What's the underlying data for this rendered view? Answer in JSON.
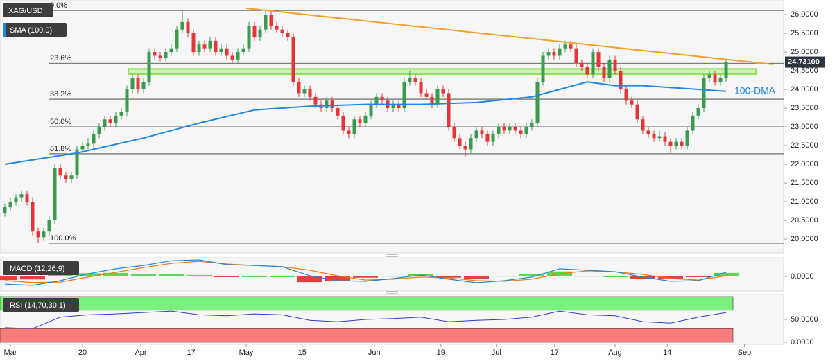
{
  "chart_data": [
    {
      "type": "candlestick",
      "symbol": "XAG/USD",
      "indicator_label": "SMA (100,0)",
      "up_color": "#3a9b4e",
      "down_color": "#e4353a",
      "xlim": [
        -0.875,
        140.375
      ],
      "xticks": [
        {
          "value": 1,
          "label": "Mar"
        },
        {
          "value": 14,
          "label": "20"
        },
        {
          "value": 24.5,
          "label": "Apr"
        },
        {
          "value": 33.6,
          "label": "17"
        },
        {
          "value": 43.5,
          "label": "May"
        },
        {
          "value": 53.6,
          "label": "15"
        },
        {
          "value": 66.6,
          "label": "Jun"
        },
        {
          "value": 78.6,
          "label": "19"
        },
        {
          "value": 88.6,
          "label": "Jul"
        },
        {
          "value": 99.1,
          "label": "17"
        },
        {
          "value": 110,
          "label": "Aug"
        },
        {
          "value": 119.4,
          "label": "14"
        },
        {
          "value": 133.3,
          "label": "Sep"
        }
      ],
      "ylim": [
        19.63,
        26.39
      ],
      "yticks": [
        {
          "value": 20,
          "label": "20.0000"
        },
        {
          "value": 20.5,
          "label": "20.5000"
        },
        {
          "value": 21,
          "label": "21.0000"
        },
        {
          "value": 21.5,
          "label": "21.5000"
        },
        {
          "value": 22,
          "label": "22.0000"
        },
        {
          "value": 22.5,
          "label": "22.5000"
        },
        {
          "value": 23,
          "label": "23.0000"
        },
        {
          "value": 23.5,
          "label": "23.5000"
        },
        {
          "value": 24,
          "label": "24.0000"
        },
        {
          "value": 24.5,
          "label": "24.5000"
        },
        {
          "value": 25,
          "label": "25.0000"
        },
        {
          "value": 25.5,
          "label": "25.5000"
        },
        {
          "value": 26,
          "label": "26.0000"
        }
      ],
      "last_price": {
        "value": 24.731,
        "label": "24.73100"
      },
      "fib_levels": [
        {
          "value": 26.11,
          "label": "0.0%"
        },
        {
          "value": 24.7,
          "label": "23.6%"
        },
        {
          "value": 23.74,
          "label": "38.2%"
        },
        {
          "value": 23.0,
          "label": "50.0%"
        },
        {
          "value": 22.28,
          "label": "61.8%"
        },
        {
          "value": 19.89,
          "label": "100.0%"
        }
      ],
      "zone": {
        "x": [
          22.25,
          135.4
        ],
        "from": 24.41,
        "to": 24.55,
        "color": "#8be04e"
      },
      "trendline": {
        "color": "#f5a025",
        "x": [
          43.5,
          138.5
        ],
        "values": [
          26.17,
          24.67
        ]
      },
      "sma": {
        "name": "100-DMA",
        "color": "#1e88e5",
        "x": [
          0,
          13,
          25,
          35,
          45,
          55,
          65,
          75,
          85,
          95,
          100,
          105,
          110,
          115,
          125,
          130
        ],
        "values": [
          22.0,
          22.3,
          22.7,
          23.1,
          23.45,
          23.55,
          23.6,
          23.6,
          23.65,
          23.8,
          24.0,
          24.2,
          24.1,
          24.1,
          24.0,
          23.95
        ]
      },
      "candles": [
        [
          20.7,
          20.95,
          20.6,
          20.85
        ],
        [
          20.85,
          21.1,
          20.75,
          21.0
        ],
        [
          21.0,
          21.2,
          20.9,
          21.1
        ],
        [
          21.1,
          21.3,
          21.0,
          21.2
        ],
        [
          21.2,
          21.3,
          20.9,
          21.0
        ],
        [
          21.0,
          21.1,
          20.1,
          20.2
        ],
        [
          20.2,
          20.3,
          19.9,
          20.05
        ],
        [
          20.05,
          20.3,
          19.95,
          20.2
        ],
        [
          20.2,
          20.6,
          20.1,
          20.5
        ],
        [
          20.5,
          22.0,
          20.4,
          21.9
        ],
        [
          21.9,
          22.0,
          21.6,
          21.7
        ],
        [
          21.7,
          21.8,
          21.5,
          21.6
        ],
        [
          21.6,
          21.8,
          21.5,
          21.7
        ],
        [
          21.7,
          22.5,
          21.6,
          22.4
        ],
        [
          22.4,
          22.6,
          22.3,
          22.5
        ],
        [
          22.5,
          22.7,
          22.4,
          22.55
        ],
        [
          22.55,
          22.9,
          22.45,
          22.8
        ],
        [
          22.8,
          23.1,
          22.7,
          23.0
        ],
        [
          23.0,
          23.3,
          22.9,
          23.2
        ],
        [
          23.2,
          23.3,
          23.0,
          23.1
        ],
        [
          23.1,
          23.4,
          23.0,
          23.3
        ],
        [
          23.3,
          23.5,
          23.2,
          23.4
        ],
        [
          23.4,
          24.1,
          23.3,
          24.0
        ],
        [
          24.0,
          24.4,
          23.9,
          24.3
        ],
        [
          24.3,
          24.4,
          23.9,
          24.0
        ],
        [
          24.0,
          24.3,
          23.9,
          24.2
        ],
        [
          24.2,
          25.1,
          24.1,
          25.0
        ],
        [
          25.0,
          25.1,
          24.8,
          24.9
        ],
        [
          24.9,
          25.0,
          24.75,
          24.85
        ],
        [
          24.85,
          25.1,
          24.75,
          25.0
        ],
        [
          25.0,
          25.2,
          24.9,
          25.1
        ],
        [
          25.1,
          25.7,
          25.0,
          25.6
        ],
        [
          25.6,
          26.1,
          25.5,
          25.8
        ],
        [
          25.8,
          25.9,
          25.4,
          25.5
        ],
        [
          25.5,
          25.6,
          24.9,
          25.0
        ],
        [
          25.0,
          25.3,
          24.9,
          25.2
        ],
        [
          25.2,
          25.3,
          25.0,
          25.1
        ],
        [
          25.1,
          25.4,
          25.0,
          25.3
        ],
        [
          25.3,
          25.4,
          24.9,
          25.0
        ],
        [
          25.0,
          25.2,
          24.9,
          25.1
        ],
        [
          25.1,
          25.2,
          24.8,
          24.9
        ],
        [
          24.9,
          25.0,
          24.7,
          24.8
        ],
        [
          24.8,
          25.1,
          24.7,
          25.0
        ],
        [
          25.0,
          25.2,
          24.9,
          25.1
        ],
        [
          25.1,
          25.8,
          25.0,
          25.7
        ],
        [
          25.7,
          25.8,
          25.3,
          25.4
        ],
        [
          25.4,
          25.7,
          25.3,
          25.6
        ],
        [
          25.6,
          26.1,
          25.5,
          26.0
        ],
        [
          26.0,
          26.1,
          25.6,
          25.7
        ],
        [
          25.7,
          25.8,
          25.5,
          25.6
        ],
        [
          25.6,
          25.7,
          25.4,
          25.5
        ],
        [
          25.5,
          25.6,
          25.3,
          25.4
        ],
        [
          25.4,
          25.5,
          24.1,
          24.2
        ],
        [
          24.2,
          24.3,
          23.8,
          23.9
        ],
        [
          23.9,
          24.1,
          23.8,
          24.0
        ],
        [
          24.0,
          24.1,
          23.7,
          23.8
        ],
        [
          23.8,
          23.9,
          23.5,
          23.6
        ],
        [
          23.6,
          23.7,
          23.4,
          23.5
        ],
        [
          23.5,
          23.8,
          23.4,
          23.7
        ],
        [
          23.7,
          23.8,
          23.4,
          23.5
        ],
        [
          23.5,
          23.6,
          23.2,
          23.3
        ],
        [
          23.3,
          23.4,
          22.8,
          22.9
        ],
        [
          22.9,
          23.0,
          22.7,
          22.8
        ],
        [
          22.8,
          23.3,
          22.7,
          23.2
        ],
        [
          23.2,
          23.3,
          23.0,
          23.1
        ],
        [
          23.1,
          23.4,
          23.0,
          23.3
        ],
        [
          23.3,
          23.7,
          23.2,
          23.6
        ],
        [
          23.6,
          23.9,
          23.5,
          23.8
        ],
        [
          23.8,
          23.9,
          23.6,
          23.7
        ],
        [
          23.7,
          23.8,
          23.4,
          23.5
        ],
        [
          23.5,
          23.7,
          23.4,
          23.6
        ],
        [
          23.6,
          23.7,
          23.4,
          23.5
        ],
        [
          23.5,
          24.3,
          23.4,
          24.2
        ],
        [
          24.2,
          24.5,
          24.1,
          24.3
        ],
        [
          24.3,
          24.4,
          24.1,
          24.2
        ],
        [
          24.2,
          24.3,
          23.8,
          23.9
        ],
        [
          23.9,
          24.0,
          23.7,
          23.8
        ],
        [
          23.8,
          23.9,
          23.5,
          23.6
        ],
        [
          23.6,
          24.1,
          23.5,
          24.0
        ],
        [
          24.0,
          24.1,
          23.8,
          23.9
        ],
        [
          23.9,
          24.0,
          22.9,
          23.0
        ],
        [
          23.0,
          23.1,
          22.6,
          22.7
        ],
        [
          22.7,
          22.8,
          22.4,
          22.5
        ],
        [
          22.5,
          22.6,
          22.2,
          22.4
        ],
        [
          22.4,
          22.8,
          22.3,
          22.7
        ],
        [
          22.7,
          23.0,
          22.6,
          22.9
        ],
        [
          22.9,
          23.0,
          22.7,
          22.8
        ],
        [
          22.8,
          22.9,
          22.5,
          22.6
        ],
        [
          22.6,
          22.9,
          22.5,
          22.8
        ],
        [
          22.8,
          23.1,
          22.7,
          23.0
        ],
        [
          23.0,
          23.1,
          22.8,
          22.9
        ],
        [
          22.9,
          23.1,
          22.8,
          23.0
        ],
        [
          23.0,
          23.1,
          22.8,
          22.9
        ],
        [
          22.9,
          23.0,
          22.7,
          22.8
        ],
        [
          22.8,
          23.1,
          22.7,
          23.0
        ],
        [
          23.0,
          23.2,
          22.9,
          23.1
        ],
        [
          23.1,
          24.3,
          23.0,
          24.2
        ],
        [
          24.2,
          25.0,
          24.1,
          24.9
        ],
        [
          24.9,
          25.1,
          24.8,
          25.0
        ],
        [
          25.0,
          25.1,
          24.8,
          24.9
        ],
        [
          24.9,
          25.2,
          24.8,
          25.1
        ],
        [
          25.1,
          25.3,
          25.0,
          25.2
        ],
        [
          25.2,
          25.3,
          25.0,
          25.1
        ],
        [
          25.1,
          25.2,
          24.6,
          24.7
        ],
        [
          24.7,
          24.8,
          24.5,
          24.6
        ],
        [
          24.6,
          24.7,
          24.3,
          24.4
        ],
        [
          24.4,
          25.1,
          24.3,
          25.0
        ],
        [
          25.0,
          25.1,
          24.5,
          24.6
        ],
        [
          24.6,
          24.7,
          24.2,
          24.3
        ],
        [
          24.3,
          24.9,
          24.2,
          24.8
        ],
        [
          24.8,
          24.9,
          24.4,
          24.5
        ],
        [
          24.5,
          24.6,
          23.9,
          24.0
        ],
        [
          24.0,
          24.1,
          23.6,
          23.7
        ],
        [
          23.7,
          23.8,
          23.5,
          23.6
        ],
        [
          23.6,
          23.7,
          23.1,
          23.2
        ],
        [
          23.2,
          23.3,
          22.8,
          22.9
        ],
        [
          22.9,
          23.0,
          22.7,
          22.8
        ],
        [
          22.8,
          22.9,
          22.6,
          22.7
        ],
        [
          22.7,
          22.9,
          22.6,
          22.75
        ],
        [
          22.75,
          22.85,
          22.5,
          22.6
        ],
        [
          22.6,
          22.7,
          22.3,
          22.5
        ],
        [
          22.5,
          22.7,
          22.4,
          22.6
        ],
        [
          22.6,
          22.7,
          22.4,
          22.5
        ],
        [
          22.5,
          23.0,
          22.4,
          22.9
        ],
        [
          22.9,
          23.4,
          22.8,
          23.3
        ],
        [
          23.3,
          23.6,
          23.2,
          23.5
        ],
        [
          23.5,
          24.4,
          23.4,
          24.3
        ],
        [
          24.3,
          24.5,
          24.2,
          24.4
        ],
        [
          24.4,
          24.5,
          24.1,
          24.2
        ],
        [
          24.2,
          24.4,
          24.1,
          24.3
        ],
        [
          24.3,
          24.8,
          24.2,
          24.731
        ]
      ]
    },
    {
      "type": "macd",
      "label": "MACD (12,26,9)",
      "ylim": [
        -0.49,
        0.63
      ],
      "yticks": [
        {
          "value": 0,
          "label": "0.0000"
        }
      ],
      "x": [
        0,
        5,
        10,
        15,
        20,
        25,
        30,
        35,
        40,
        45,
        50,
        55,
        60,
        65,
        70,
        75,
        80,
        85,
        90,
        95,
        100,
        105,
        110,
        115,
        120,
        125,
        130
      ],
      "macd": {
        "color": "#1e88e5",
        "values": [
          -0.26,
          -0.3,
          -0.14,
          0.09,
          0.26,
          0.37,
          0.53,
          0.56,
          0.4,
          0.37,
          0.33,
          0.02,
          -0.14,
          -0.16,
          -0.07,
          0.05,
          -0.09,
          -0.21,
          -0.14,
          -0.02,
          0.26,
          0.21,
          0.16,
          -0.02,
          -0.16,
          -0.14,
          0.14
        ]
      },
      "signal": {
        "color": "#f57c00",
        "values": [
          -0.14,
          -0.2,
          -0.19,
          -0.02,
          0.14,
          0.3,
          0.44,
          0.51,
          0.42,
          0.37,
          0.33,
          0.21,
          0.02,
          -0.12,
          -0.09,
          -0.02,
          -0.05,
          -0.14,
          -0.16,
          -0.09,
          0.09,
          0.19,
          0.16,
          0.07,
          -0.07,
          -0.12,
          0.02
        ]
      },
      "histogram": {
        "up_color": "#3ed13a",
        "down_color": "#e02020",
        "values": [
          -0.12,
          -0.1,
          0.05,
          0.11,
          0.12,
          0.07,
          0.09,
          0.05,
          -0.02,
          0,
          0,
          -0.19,
          -0.16,
          -0.04,
          0.02,
          0.07,
          -0.04,
          -0.07,
          0.02,
          0.07,
          0.17,
          0.02,
          0,
          -0.09,
          -0.09,
          -0.02,
          0.12
        ]
      }
    },
    {
      "type": "rsi",
      "label": "RSI (14,70,30,1)",
      "ylim": [
        0,
        100
      ],
      "yticks": [
        {
          "value": 0,
          "label": "0.0000"
        },
        {
          "value": 50,
          "label": "50.0000"
        }
      ],
      "bands": [
        {
          "from": 70,
          "to": 100,
          "color": "#7cf07c"
        },
        {
          "from": 0,
          "to": 30,
          "color": "#f77b7b"
        }
      ],
      "color": "#2a3fd6",
      "x": [
        0,
        5,
        10,
        15,
        20,
        25,
        30,
        35,
        40,
        45,
        50,
        55,
        60,
        65,
        70,
        75,
        80,
        85,
        90,
        95,
        100,
        105,
        110,
        115,
        120,
        125,
        130
      ],
      "values": [
        32,
        30,
        55,
        60,
        62,
        65,
        68,
        60,
        58,
        62,
        60,
        48,
        45,
        50,
        52,
        55,
        45,
        48,
        50,
        55,
        68,
        60,
        58,
        45,
        42,
        55,
        65
      ]
    }
  ]
}
